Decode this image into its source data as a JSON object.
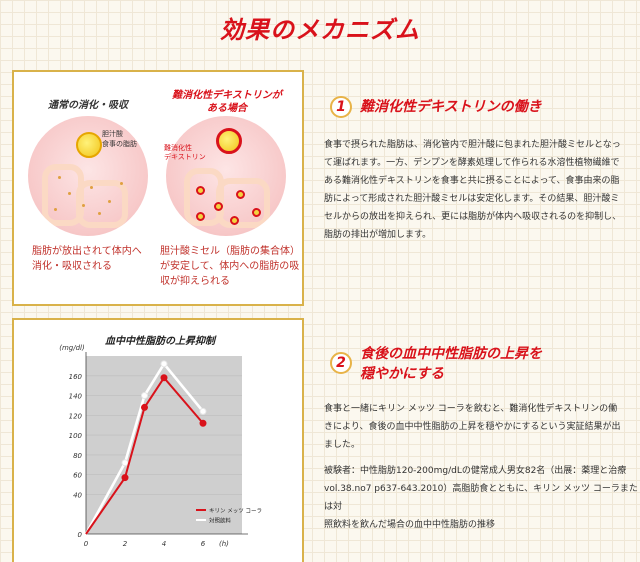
{
  "page": {
    "title": "効果のメカニズム"
  },
  "mechanism": {
    "left": {
      "heading": "通常の消化・吸収",
      "labels": [
        "胆汁酸",
        "食事の脂肪"
      ],
      "caption": [
        "脂肪が放出されて体内へ",
        "消化・吸収される"
      ]
    },
    "right": {
      "heading": [
        "難消化性デキストリンが",
        "ある場合"
      ],
      "labels": [
        "難消化性",
        "デキストリン"
      ],
      "caption": [
        "胆汁酸ミセル（脂肪の集合体）",
        "が安定して、体内への脂肪の吸",
        "収が抑えられる"
      ]
    }
  },
  "section1": {
    "number": "1",
    "title": "難消化性デキストリンの働き",
    "body": [
      "食事で摂られた脂肪は、消化管内で胆汁酸に包まれた胆汁酸ミセルとなっ",
      "て運ばれます。一方、デンプンを酵素処理して作られる水溶性植物繊維で",
      "ある難消化性デキストリンを食事と共に摂ることによって、食事由来の脂",
      "肪によって形成された胆汁酸ミセルは安定化します。その結果、胆汁酸ミ",
      "セルからの放出を抑えられ、更には脂肪が体内へ吸収されるのを抑制し、",
      "脂肪の排出が増加します。"
    ]
  },
  "section2": {
    "number": "2",
    "title": [
      "食後の血中中性脂肪の上昇を",
      "穏やかにする"
    ],
    "body": [
      "食事と一緒にキリン メッツ コーラを飲むと、難消化性デキストリンの働",
      "きにより、食後の血中中性脂肪の上昇を穏やかにするという実証結果が出",
      "ました。"
    ],
    "note": [
      "被験者：中性脂肪120-200mg/dLの健常成人男女82名（出展：薬理と治療",
      "vol.38.no7 p637-643.2010）高脂肪食とともに、キリン メッツ コーラまたは対",
      "照飲料を飲んだ場合の血中中性脂肪の推移"
    ]
  },
  "chart_data": {
    "type": "line",
    "title": "血中中性脂肪の上昇抑制",
    "ylabel": "(mg/dl)",
    "xlabel": "(h)",
    "ylim": [
      0,
      180
    ],
    "xlim": [
      0,
      8
    ],
    "yticks": [
      0,
      40,
      60,
      80,
      100,
      120,
      140,
      160
    ],
    "xticks": [
      0,
      2,
      4,
      6
    ],
    "x": [
      0,
      2,
      3,
      4,
      6
    ],
    "series": [
      {
        "name": "キリン メッツ コーラ",
        "values": [
          0,
          57,
          128,
          158,
          112
        ],
        "color": "#d9121b"
      },
      {
        "name": "対照飲料",
        "values": [
          0,
          72,
          140,
          172,
          124
        ],
        "color": "#ffffff"
      }
    ],
    "legend": "bottom-right",
    "colors": {
      "bg": "#cfcfcf"
    }
  }
}
